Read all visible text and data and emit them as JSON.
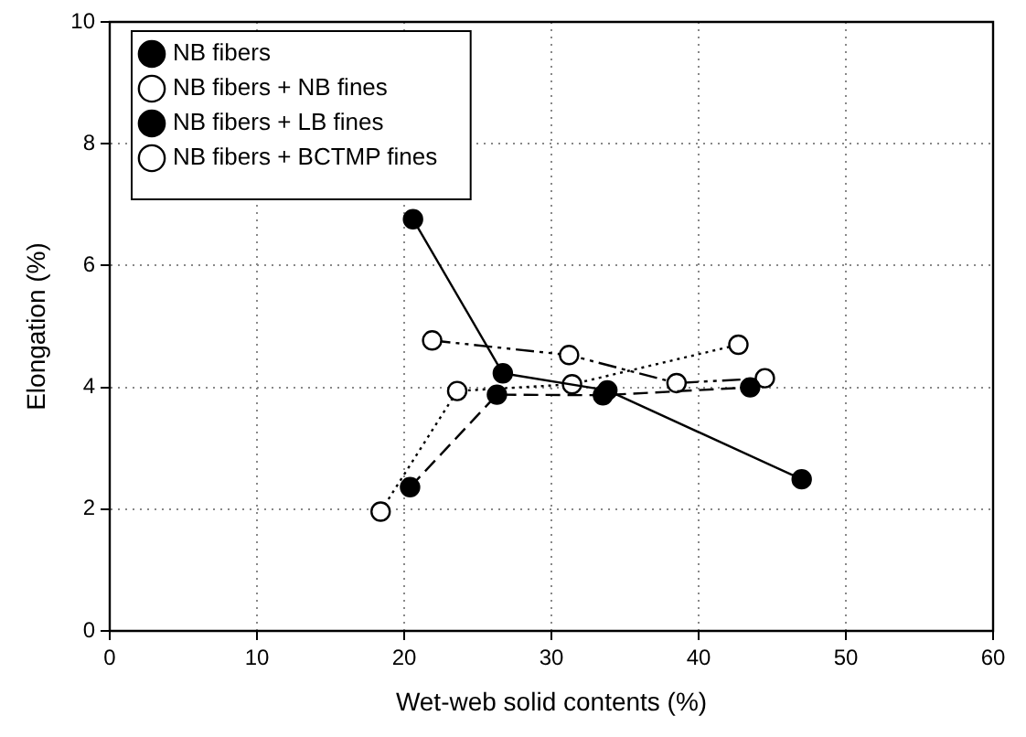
{
  "chart_data": {
    "type": "line",
    "xlabel": "Wet-web solid contents (%)",
    "ylabel": "Elongation (%)",
    "xlim": [
      0,
      60
    ],
    "xticks": [
      0,
      10,
      20,
      30,
      40,
      50,
      60
    ],
    "ylim": [
      0,
      10
    ],
    "yticks": [
      0,
      2,
      4,
      6,
      8,
      10
    ],
    "grid": true,
    "legend": "top left",
    "series": [
      {
        "name": "NB fibers",
        "color": "#000000",
        "marker": "circle",
        "line_style": "solid",
        "x": [
          20.6,
          26.7,
          33.8,
          47.0
        ],
        "values": [
          6.76,
          4.23,
          3.95,
          2.49
        ]
      },
      {
        "name": "NB fibers + NB fines",
        "color": "#000000",
        "marker": "circle-open",
        "line_style": "dotted",
        "x": [
          18.4,
          23.6,
          31.4,
          42.7
        ],
        "values": [
          1.96,
          3.94,
          4.05,
          4.7
        ]
      },
      {
        "name": "NB fibers + LB fines",
        "color": "#000000",
        "marker": "circle",
        "line_style": "dashed",
        "x": [
          20.4,
          26.3,
          33.5,
          43.5
        ],
        "values": [
          2.36,
          3.88,
          3.87,
          4.0
        ]
      },
      {
        "name": "NB fibers + BCTMP fines",
        "color": "#000000",
        "marker": "circle-open",
        "line_style": "dashdotdot",
        "x": [
          21.9,
          31.2,
          38.5,
          44.5
        ],
        "values": [
          4.77,
          4.53,
          4.07,
          4.15
        ]
      }
    ]
  }
}
